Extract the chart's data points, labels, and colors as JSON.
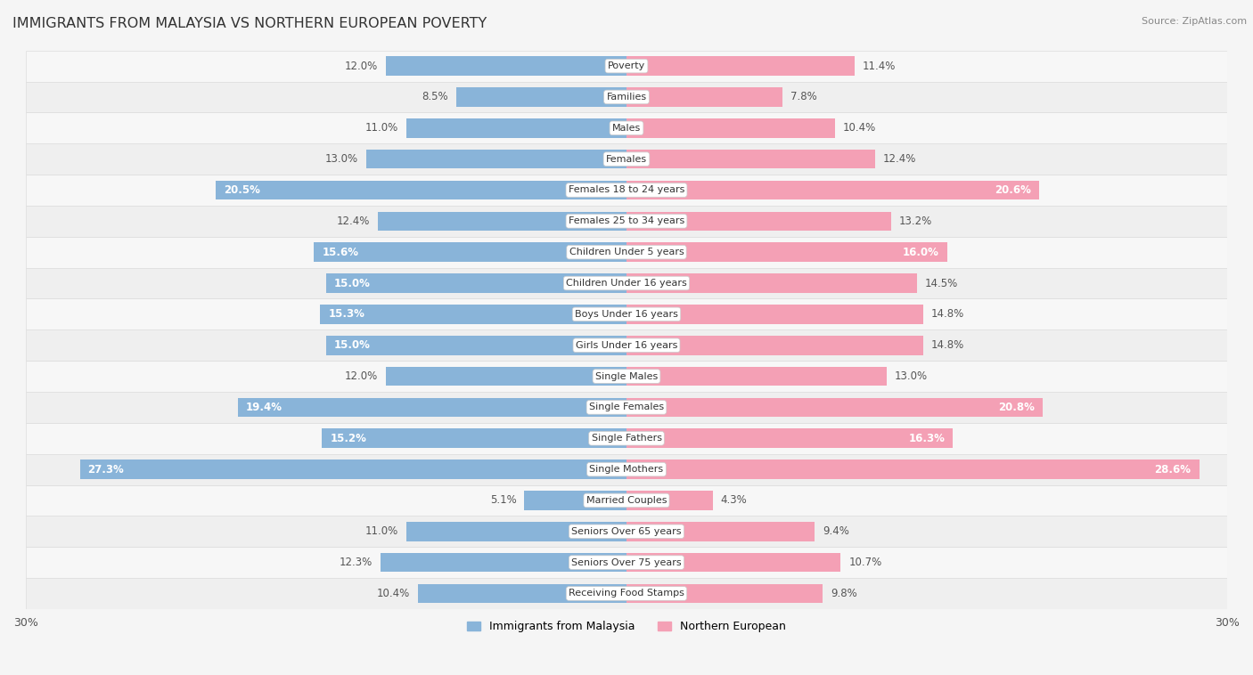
{
  "title": "IMMIGRANTS FROM MALAYSIA VS NORTHERN EUROPEAN POVERTY",
  "source": "Source: ZipAtlas.com",
  "categories": [
    "Poverty",
    "Families",
    "Males",
    "Females",
    "Females 18 to 24 years",
    "Females 25 to 34 years",
    "Children Under 5 years",
    "Children Under 16 years",
    "Boys Under 16 years",
    "Girls Under 16 years",
    "Single Males",
    "Single Females",
    "Single Fathers",
    "Single Mothers",
    "Married Couples",
    "Seniors Over 65 years",
    "Seniors Over 75 years",
    "Receiving Food Stamps"
  ],
  "malaysia_values": [
    12.0,
    8.5,
    11.0,
    13.0,
    20.5,
    12.4,
    15.6,
    15.0,
    15.3,
    15.0,
    12.0,
    19.4,
    15.2,
    27.3,
    5.1,
    11.0,
    12.3,
    10.4
  ],
  "northern_values": [
    11.4,
    7.8,
    10.4,
    12.4,
    20.6,
    13.2,
    16.0,
    14.5,
    14.8,
    14.8,
    13.0,
    20.8,
    16.3,
    28.6,
    4.3,
    9.4,
    10.7,
    9.8
  ],
  "malaysia_color": "#89b4d9",
  "northern_color": "#f4a0b5",
  "background_color": "#f5f5f5",
  "axis_limit": 30.0,
  "legend_malaysia": "Immigrants from Malaysia",
  "legend_northern": "Northern European",
  "bar_height": 0.62,
  "high_threshold": 15.0
}
